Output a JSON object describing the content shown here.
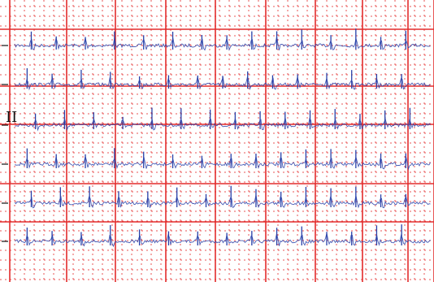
{
  "colors": {
    "background": "#ffffff",
    "major_grid": "#e32b2b",
    "minor_grid": "#e32b2b",
    "trace": "#2840a8",
    "calibration": "#111111"
  },
  "lead_labels": [
    "II"
  ],
  "chart_data": {
    "type": "line",
    "title": "",
    "xlabel": "",
    "ylabel": "",
    "grid": true,
    "legend": "none",
    "paper": {
      "major_squares_x": 9,
      "major_squares_y": 7,
      "minor_per_major": 5
    },
    "rhythm_strips": 6,
    "series": [
      {
        "rhythm": "irregular",
        "beats": [
          0.04,
          0.1,
          0.17,
          0.24,
          0.31,
          0.38,
          0.45,
          0.51,
          0.57,
          0.63,
          0.69,
          0.76,
          0.82,
          0.88,
          0.94
        ]
      },
      {
        "rhythm": "irregular",
        "beats": [
          0.03,
          0.09,
          0.16,
          0.23,
          0.3,
          0.37,
          0.44,
          0.5,
          0.56,
          0.62,
          0.68,
          0.75,
          0.81,
          0.87,
          0.93
        ]
      },
      {
        "rhythm": "irregular",
        "beats": [
          0.05,
          0.12,
          0.19,
          0.26,
          0.33,
          0.4,
          0.47,
          0.53,
          0.59,
          0.65,
          0.71,
          0.77,
          0.83,
          0.89,
          0.95
        ]
      },
      {
        "rhythm": "irregular",
        "beats": [
          0.03,
          0.1,
          0.17,
          0.24,
          0.31,
          0.38,
          0.45,
          0.52,
          0.58,
          0.64,
          0.7,
          0.76,
          0.82,
          0.88,
          0.94
        ]
      },
      {
        "rhythm": "irregular",
        "beats": [
          0.04,
          0.11,
          0.18,
          0.25,
          0.32,
          0.39,
          0.46,
          0.52,
          0.58,
          0.64,
          0.7,
          0.76,
          0.82,
          0.88,
          0.94
        ]
      },
      {
        "rhythm": "irregular",
        "beats": [
          0.03,
          0.09,
          0.16,
          0.23,
          0.3,
          0.37,
          0.44,
          0.51,
          0.57,
          0.63,
          0.69,
          0.75,
          0.81,
          0.87,
          0.93
        ]
      }
    ]
  }
}
